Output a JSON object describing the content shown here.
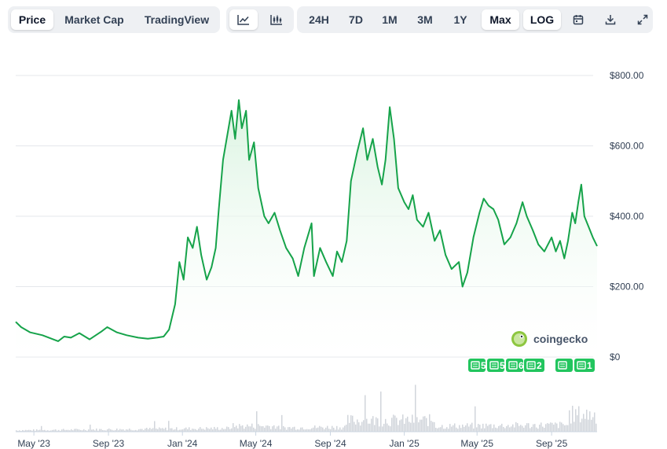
{
  "toolbar": {
    "tabs": [
      {
        "label": "Price",
        "active": true
      },
      {
        "label": "Market Cap",
        "active": false
      },
      {
        "label": "TradingView",
        "active": false
      }
    ],
    "chart_types": [
      {
        "icon": "line-chart-icon",
        "active": true
      },
      {
        "icon": "candlestick-chart-icon",
        "active": false
      }
    ],
    "ranges": [
      {
        "label": "24H",
        "active": false
      },
      {
        "label": "7D",
        "active": false
      },
      {
        "label": "1M",
        "active": false
      },
      {
        "label": "3M",
        "active": false
      },
      {
        "label": "1Y",
        "active": false
      },
      {
        "label": "Max",
        "active": true
      }
    ],
    "log_label": "LOG",
    "actions": [
      "calendar-icon",
      "download-icon",
      "fullscreen-icon"
    ]
  },
  "watermark": "coingecko",
  "event_badges": [
    "5",
    "5",
    "6",
    "2",
    "1"
  ],
  "colors": {
    "line": "#16a34a",
    "fill_top": "#d8f3df",
    "badge": "#22c55e",
    "volume": "#d1d5db",
    "grid": "#e5e7eb"
  },
  "chart_data": {
    "type": "area",
    "title": "",
    "xlabel": "",
    "ylabel": "",
    "ylim": [
      0,
      800
    ],
    "y_ticks": [
      {
        "value": 0,
        "label": "$0"
      },
      {
        "value": 200,
        "label": "$200.00"
      },
      {
        "value": 400,
        "label": "$400.00"
      },
      {
        "value": 600,
        "label": "$600.00"
      },
      {
        "value": 800,
        "label": "$800.00"
      }
    ],
    "x_ticks": [
      {
        "date": "2023-05-01",
        "label": "May '23"
      },
      {
        "date": "2023-09-01",
        "label": "Sep '23"
      },
      {
        "date": "2024-01-01",
        "label": "Jan '24"
      },
      {
        "date": "2024-05-01",
        "label": "May '24"
      },
      {
        "date": "2024-09-01",
        "label": "Sep '24"
      },
      {
        "date": "2025-01-01",
        "label": "Jan '25"
      },
      {
        "date": "2025-05-01",
        "label": "May '25"
      },
      {
        "date": "2025-09-01",
        "label": "Sep '25"
      }
    ],
    "grid": true,
    "series": [
      {
        "name": "",
        "points": [
          [
            "2023-04-01",
            100
          ],
          [
            "2023-04-10",
            85
          ],
          [
            "2023-04-25",
            70
          ],
          [
            "2023-05-15",
            62
          ],
          [
            "2023-06-10",
            45
          ],
          [
            "2023-06-20",
            58
          ],
          [
            "2023-07-01",
            55
          ],
          [
            "2023-07-15",
            68
          ],
          [
            "2023-08-01",
            50
          ],
          [
            "2023-08-20",
            72
          ],
          [
            "2023-08-30",
            85
          ],
          [
            "2023-09-15",
            70
          ],
          [
            "2023-10-01",
            62
          ],
          [
            "2023-10-20",
            55
          ],
          [
            "2023-11-05",
            52
          ],
          [
            "2023-11-20",
            55
          ],
          [
            "2023-12-01",
            58
          ],
          [
            "2023-12-10",
            78
          ],
          [
            "2023-12-20",
            150
          ],
          [
            "2023-12-27",
            270
          ],
          [
            "2024-01-03",
            220
          ],
          [
            "2024-01-10",
            340
          ],
          [
            "2024-01-18",
            310
          ],
          [
            "2024-01-25",
            370
          ],
          [
            "2024-02-01",
            290
          ],
          [
            "2024-02-10",
            220
          ],
          [
            "2024-02-18",
            255
          ],
          [
            "2024-02-25",
            310
          ],
          [
            "2024-03-01",
            420
          ],
          [
            "2024-03-08",
            560
          ],
          [
            "2024-03-15",
            630
          ],
          [
            "2024-03-22",
            700
          ],
          [
            "2024-03-28",
            620
          ],
          [
            "2024-04-03",
            730
          ],
          [
            "2024-04-08",
            650
          ],
          [
            "2024-04-15",
            700
          ],
          [
            "2024-04-20",
            560
          ],
          [
            "2024-04-28",
            610
          ],
          [
            "2024-05-05",
            480
          ],
          [
            "2024-05-15",
            400
          ],
          [
            "2024-05-22",
            380
          ],
          [
            "2024-06-01",
            410
          ],
          [
            "2024-06-10",
            360
          ],
          [
            "2024-06-20",
            310
          ],
          [
            "2024-07-01",
            280
          ],
          [
            "2024-07-10",
            230
          ],
          [
            "2024-07-20",
            310
          ],
          [
            "2024-08-01",
            380
          ],
          [
            "2024-08-05",
            230
          ],
          [
            "2024-08-15",
            310
          ],
          [
            "2024-08-25",
            270
          ],
          [
            "2024-09-05",
            230
          ],
          [
            "2024-09-12",
            300
          ],
          [
            "2024-09-20",
            270
          ],
          [
            "2024-09-28",
            330
          ],
          [
            "2024-10-05",
            500
          ],
          [
            "2024-10-15",
            580
          ],
          [
            "2024-10-25",
            650
          ],
          [
            "2024-11-01",
            560
          ],
          [
            "2024-11-10",
            620
          ],
          [
            "2024-11-18",
            540
          ],
          [
            "2024-11-25",
            490
          ],
          [
            "2024-12-01",
            560
          ],
          [
            "2024-12-08",
            710
          ],
          [
            "2024-12-15",
            620
          ],
          [
            "2024-12-22",
            480
          ],
          [
            "2025-01-01",
            440
          ],
          [
            "2025-01-08",
            420
          ],
          [
            "2025-01-15",
            460
          ],
          [
            "2025-01-22",
            390
          ],
          [
            "2025-02-01",
            370
          ],
          [
            "2025-02-10",
            410
          ],
          [
            "2025-02-20",
            330
          ],
          [
            "2025-03-01",
            360
          ],
          [
            "2025-03-10",
            290
          ],
          [
            "2025-03-20",
            250
          ],
          [
            "2025-04-01",
            270
          ],
          [
            "2025-04-07",
            200
          ],
          [
            "2025-04-15",
            240
          ],
          [
            "2025-04-25",
            340
          ],
          [
            "2025-05-05",
            410
          ],
          [
            "2025-05-12",
            450
          ],
          [
            "2025-05-20",
            430
          ],
          [
            "2025-05-28",
            420
          ],
          [
            "2025-06-05",
            390
          ],
          [
            "2025-06-15",
            320
          ],
          [
            "2025-06-25",
            340
          ],
          [
            "2025-07-05",
            380
          ],
          [
            "2025-07-15",
            440
          ],
          [
            "2025-07-22",
            400
          ],
          [
            "2025-08-01",
            360
          ],
          [
            "2025-08-10",
            320
          ],
          [
            "2025-08-20",
            300
          ],
          [
            "2025-09-01",
            340
          ],
          [
            "2025-09-08",
            300
          ],
          [
            "2025-09-15",
            330
          ],
          [
            "2025-09-22",
            280
          ],
          [
            "2025-09-28",
            330
          ],
          [
            "2025-10-05",
            410
          ],
          [
            "2025-10-10",
            380
          ],
          [
            "2025-10-15",
            440
          ],
          [
            "2025-10-20",
            490
          ],
          [
            "2025-10-25",
            400
          ],
          [
            "2025-11-01",
            370
          ],
          [
            "2025-11-08",
            340
          ],
          [
            "2025-11-15",
            315
          ]
        ]
      }
    ]
  }
}
